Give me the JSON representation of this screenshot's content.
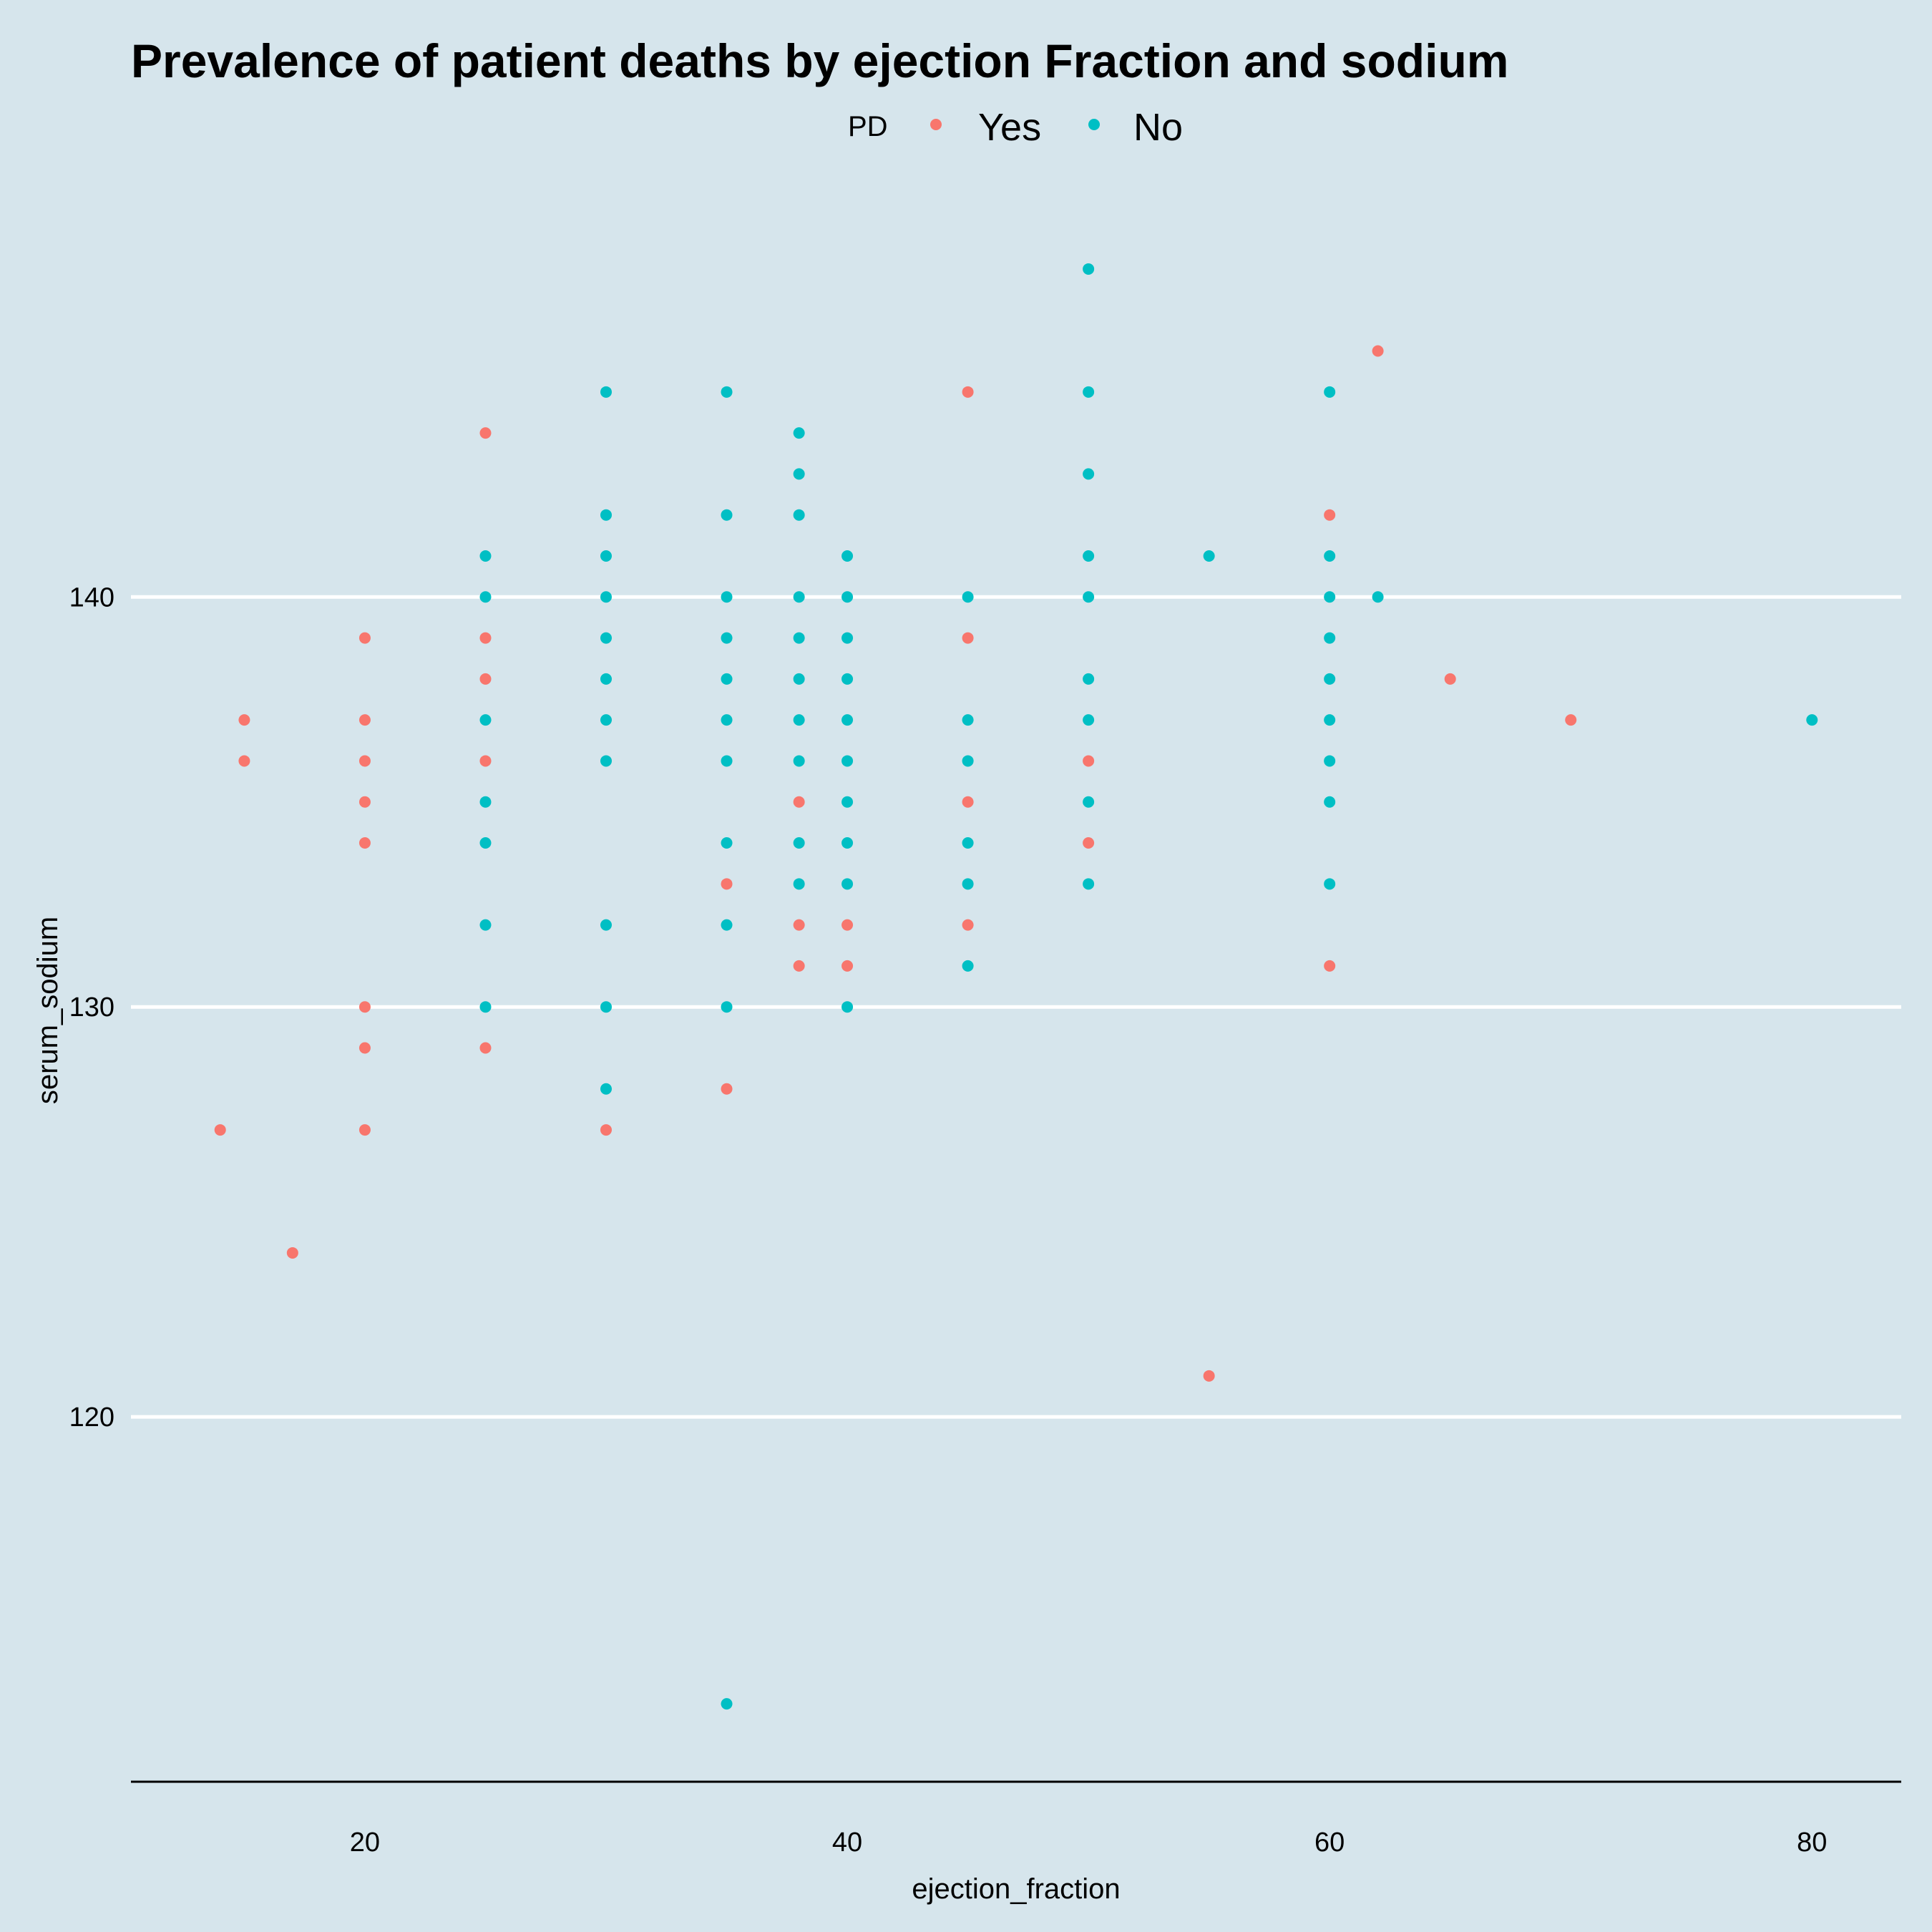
{
  "chart_data": {
    "type": "scatter",
    "title": "Prevalence of patient deaths by ejection Fraction and sodium",
    "xlabel": "ejection_fraction",
    "ylabel": "serum_sodium",
    "xlim": [
      10.3,
      83.7
    ],
    "ylim": [
      111.1,
      149.5
    ],
    "x_ticks": [
      20,
      40,
      60,
      80
    ],
    "y_ticks": [
      120,
      130,
      140
    ],
    "grid": "horizontal-major",
    "legend": {
      "title": "PD",
      "position": "top",
      "entries": [
        {
          "label": "Yes",
          "color": "#f8766d"
        },
        {
          "label": "No",
          "color": "#00bfc4"
        }
      ]
    },
    "series": [
      {
        "name": "Yes",
        "color": "#f8766d",
        "points": [
          [
            14,
            127
          ],
          [
            15,
            137
          ],
          [
            15,
            136
          ],
          [
            17,
            124
          ],
          [
            20,
            139
          ],
          [
            20,
            137
          ],
          [
            20,
            136
          ],
          [
            20,
            135
          ],
          [
            20,
            134
          ],
          [
            20,
            130
          ],
          [
            20,
            129
          ],
          [
            20,
            127
          ],
          [
            25,
            144
          ],
          [
            25,
            139
          ],
          [
            25,
            138
          ],
          [
            25,
            136
          ],
          [
            25,
            129
          ],
          [
            30,
            127
          ],
          [
            35,
            133
          ],
          [
            35,
            128
          ],
          [
            38,
            135
          ],
          [
            38,
            132
          ],
          [
            38,
            131
          ],
          [
            40,
            132
          ],
          [
            40,
            131
          ],
          [
            45,
            145
          ],
          [
            45,
            139
          ],
          [
            45,
            135
          ],
          [
            45,
            132
          ],
          [
            50,
            136
          ],
          [
            50,
            134
          ],
          [
            55,
            121
          ],
          [
            60,
            142
          ],
          [
            60,
            131
          ],
          [
            62,
            146
          ],
          [
            65,
            138
          ],
          [
            70,
            137
          ]
        ]
      },
      {
        "name": "No",
        "color": "#00bfc4",
        "points": [
          [
            25,
            141
          ],
          [
            25,
            140
          ],
          [
            25,
            137
          ],
          [
            25,
            135
          ],
          [
            25,
            134
          ],
          [
            25,
            132
          ],
          [
            25,
            130
          ],
          [
            30,
            145
          ],
          [
            30,
            142
          ],
          [
            30,
            141
          ],
          [
            30,
            140
          ],
          [
            30,
            139
          ],
          [
            30,
            138
          ],
          [
            30,
            137
          ],
          [
            30,
            136
          ],
          [
            30,
            132
          ],
          [
            30,
            130
          ],
          [
            30,
            128
          ],
          [
            35,
            145
          ],
          [
            35,
            142
          ],
          [
            35,
            140
          ],
          [
            35,
            139
          ],
          [
            35,
            138
          ],
          [
            35,
            137
          ],
          [
            35,
            136
          ],
          [
            35,
            134
          ],
          [
            35,
            132
          ],
          [
            35,
            130
          ],
          [
            35,
            113
          ],
          [
            38,
            144
          ],
          [
            38,
            143
          ],
          [
            38,
            142
          ],
          [
            38,
            140
          ],
          [
            38,
            139
          ],
          [
            38,
            138
          ],
          [
            38,
            137
          ],
          [
            38,
            136
          ],
          [
            38,
            134
          ],
          [
            38,
            133
          ],
          [
            40,
            141
          ],
          [
            40,
            140
          ],
          [
            40,
            139
          ],
          [
            40,
            138
          ],
          [
            40,
            137
          ],
          [
            40,
            136
          ],
          [
            40,
            135
          ],
          [
            40,
            134
          ],
          [
            40,
            133
          ],
          [
            40,
            130
          ],
          [
            45,
            140
          ],
          [
            45,
            137
          ],
          [
            45,
            136
          ],
          [
            45,
            134
          ],
          [
            45,
            133
          ],
          [
            45,
            131
          ],
          [
            50,
            148
          ],
          [
            50,
            145
          ],
          [
            50,
            143
          ],
          [
            50,
            141
          ],
          [
            50,
            140
          ],
          [
            50,
            138
          ],
          [
            50,
            137
          ],
          [
            50,
            135
          ],
          [
            50,
            133
          ],
          [
            55,
            141
          ],
          [
            60,
            145
          ],
          [
            60,
            141
          ],
          [
            60,
            140
          ],
          [
            60,
            139
          ],
          [
            60,
            138
          ],
          [
            60,
            137
          ],
          [
            60,
            136
          ],
          [
            60,
            135
          ],
          [
            60,
            133
          ],
          [
            62,
            140
          ],
          [
            80,
            137
          ]
        ]
      }
    ]
  }
}
